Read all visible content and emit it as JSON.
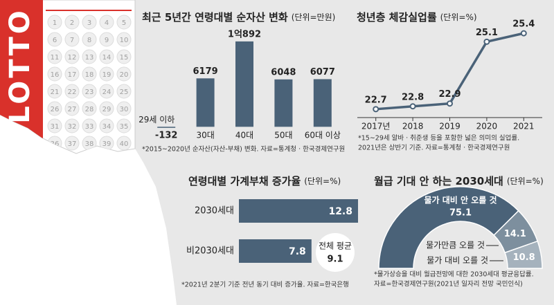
{
  "lotto": {
    "brand": "LOTTO",
    "numbers": [
      1,
      2,
      3,
      4,
      5,
      6,
      7,
      8,
      9,
      10,
      11,
      12,
      13,
      14,
      15,
      16,
      17,
      18,
      19,
      20,
      21,
      22,
      23,
      24,
      25,
      26,
      27,
      28,
      29,
      30,
      31,
      32,
      33,
      34,
      35,
      36,
      37,
      38,
      39,
      40
    ]
  },
  "chart_data": [
    {
      "type": "bar",
      "title": "최근 5년간 연령대별 순자산 변화",
      "unit": "(단위=만원)",
      "categories": [
        "29세 이하",
        "30대",
        "40대",
        "50대",
        "60대 이상"
      ],
      "values": [
        -132,
        6179,
        10892,
        6048,
        6077
      ],
      "value_labels": [
        "-132",
        "6179",
        "1억892",
        "6048",
        "6077"
      ],
      "color": "#4a6278",
      "ylim": [
        -500,
        11500
      ],
      "notes": [
        "*2015~2020년 순자산(자산-부채) 변화. 자료=통계청 · 한국경제연구원"
      ]
    },
    {
      "type": "line",
      "title": "청년층 체감실업률",
      "unit": "(단위=%)",
      "categories": [
        "2017년",
        "2018",
        "2019",
        "2020",
        "2021"
      ],
      "values": [
        22.7,
        22.8,
        22.9,
        25.1,
        25.4
      ],
      "color": "#4a6278",
      "ylim": [
        22.4,
        25.6
      ],
      "notes": [
        "*15~29세 알바 · 취준생 등을 포함한 넓은 의미의 실업률.",
        "2021년은 상반기 기준. 자료=통계청 · 한국경제연구원"
      ]
    },
    {
      "type": "hbar",
      "title": "연령대별 가계부채 증가율",
      "unit": "(단위=%)",
      "categories": [
        "2030세대",
        "비2030세대"
      ],
      "values": [
        12.8,
        7.8
      ],
      "color": "#4a6278",
      "xlim": [
        0,
        13
      ],
      "average": {
        "label": "전체 평균",
        "value": 9.1
      },
      "notes": [
        "*2021년 2분기 기준 전년 동기 대비 증가율. 자료=한국은행"
      ]
    },
    {
      "type": "donut",
      "title": "월급 기대 안 하는 2030세대",
      "unit": "(단위=%)",
      "categories": [
        "물가 대비 안 오를 것",
        "물가만큼 오를 것",
        "물가 대비 오를 것"
      ],
      "values": [
        75.1,
        14.1,
        10.8
      ],
      "colors": [
        "#4a6278",
        "#7d8f9e",
        "#a5b2bd"
      ],
      "notes": [
        "*물가상승을 대비 월급전망에 대한 2030세대 평균응답률.",
        "자료=한국경제연구원(2021년 일자리 전망 국민인식)"
      ]
    }
  ]
}
